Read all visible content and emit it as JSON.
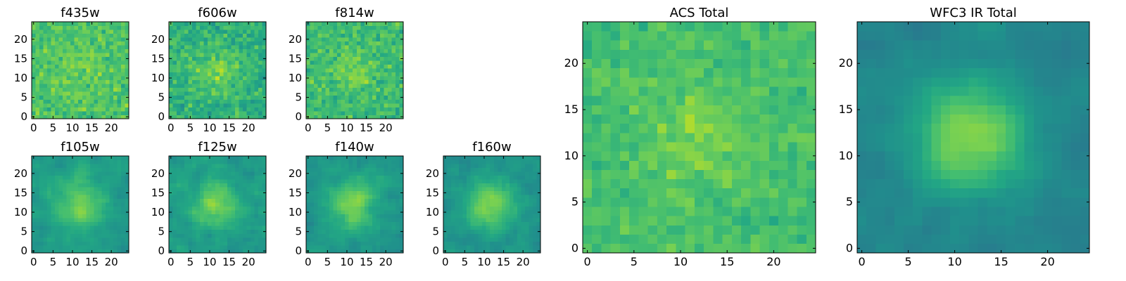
{
  "chart_data": [
    {
      "type": "heatmap",
      "title": "f435w",
      "xticks": [
        "0",
        "5",
        "10",
        "15",
        "20"
      ],
      "yticks": [
        "0",
        "5",
        "10",
        "15",
        "20"
      ],
      "xlim": [
        0,
        25
      ],
      "ylim": [
        0,
        25
      ],
      "grid": false,
      "colormap": "viridis"
    },
    {
      "type": "heatmap",
      "title": "f606w",
      "xticks": [
        "0",
        "5",
        "10",
        "15",
        "20"
      ],
      "yticks": [
        "0",
        "5",
        "10",
        "15",
        "20"
      ],
      "xlim": [
        0,
        25
      ],
      "ylim": [
        0,
        25
      ],
      "grid": false,
      "colormap": "viridis"
    },
    {
      "type": "heatmap",
      "title": "f814w",
      "xticks": [
        "0",
        "5",
        "10",
        "15",
        "20"
      ],
      "yticks": [
        "0",
        "5",
        "10",
        "15",
        "20"
      ],
      "xlim": [
        0,
        25
      ],
      "ylim": [
        0,
        25
      ],
      "grid": false,
      "colormap": "viridis"
    },
    {
      "type": "heatmap",
      "title": "f105w",
      "xticks": [
        "0",
        "5",
        "10",
        "15",
        "20"
      ],
      "yticks": [
        "0",
        "5",
        "10",
        "15",
        "20"
      ],
      "xlim": [
        0,
        25
      ],
      "ylim": [
        0,
        25
      ],
      "grid": false,
      "colormap": "viridis"
    },
    {
      "type": "heatmap",
      "title": "f125w",
      "xticks": [
        "0",
        "5",
        "10",
        "15",
        "20"
      ],
      "yticks": [
        "0",
        "5",
        "10",
        "15",
        "20"
      ],
      "xlim": [
        0,
        25
      ],
      "ylim": [
        0,
        25
      ],
      "grid": false,
      "colormap": "viridis"
    },
    {
      "type": "heatmap",
      "title": "f140w",
      "xticks": [
        "0",
        "5",
        "10",
        "15",
        "20"
      ],
      "yticks": [
        "0",
        "5",
        "10",
        "15",
        "20"
      ],
      "xlim": [
        0,
        25
      ],
      "ylim": [
        0,
        25
      ],
      "grid": false,
      "colormap": "viridis"
    },
    {
      "type": "heatmap",
      "title": "f160w",
      "xticks": [
        "0",
        "5",
        "10",
        "15",
        "20"
      ],
      "yticks": [
        "0",
        "5",
        "10",
        "15",
        "20"
      ],
      "xlim": [
        0,
        25
      ],
      "ylim": [
        0,
        25
      ],
      "grid": false,
      "colormap": "viridis"
    },
    {
      "type": "heatmap",
      "title": "ACS Total",
      "xticks": [
        "0",
        "5",
        "10",
        "15",
        "20"
      ],
      "yticks": [
        "0",
        "5",
        "10",
        "15",
        "20"
      ],
      "xlim": [
        0,
        25
      ],
      "ylim": [
        0,
        25
      ],
      "grid": false,
      "colormap": "viridis"
    },
    {
      "type": "heatmap",
      "title": "WFC3 IR Total",
      "xticks": [
        "0",
        "5",
        "10",
        "15",
        "20"
      ],
      "yticks": [
        "0",
        "5",
        "10",
        "15",
        "20"
      ],
      "xlim": [
        0,
        25
      ],
      "ylim": [
        0,
        25
      ],
      "grid": false,
      "colormap": "viridis"
    }
  ]
}
